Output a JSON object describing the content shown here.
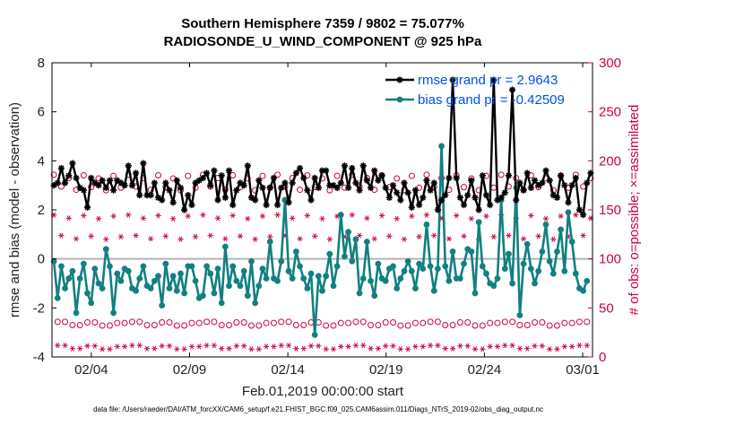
{
  "title_line1": "Southern Hemisphere 7359 / 9802 = 75.077%",
  "title_line2": "RADIOSONDE_U_WIND_COMPONENT @ 925 hPa",
  "xlabel": "Feb.01,2019 00:00:00 start",
  "footer": "data file: /Users/raeder/DAI/ATM_forcXX/CAM6_setup/f.e21.FHIST_BGC.f09_025.CAM6assim.011/Diags_NTrS_2019-02/obs_diag_output.nc",
  "colors": {
    "rmse": "#000000",
    "bias": "#128080",
    "obs": "#cc0044",
    "zero": "#b4b4b4",
    "legend_text": "#0050e6"
  },
  "chart_data": {
    "type": "line",
    "x_unit": "days since Feb.01,2019 00:00:00",
    "xlim": [
      1,
      28.5
    ],
    "x_ticks": [
      3,
      8,
      13,
      18,
      23,
      28
    ],
    "x_tick_labels": [
      "02/04",
      "02/09",
      "02/14",
      "02/19",
      "02/24",
      "03/01"
    ],
    "ylabel_left": "rmse and bias (model - observation)",
    "ylim_left": [
      -4,
      8
    ],
    "y_ticks_left": [
      "-4",
      "-2",
      "0",
      "2",
      "4",
      "6",
      "8"
    ],
    "ylabel_right": "# of obs: o=possible; ×=assimilated",
    "ylim_right": [
      0,
      300
    ],
    "y_ticks_right": [
      "0",
      "50",
      "100",
      "150",
      "200",
      "250",
      "300"
    ],
    "legend": [
      {
        "name": "rmse",
        "label": "rmse grand pr = 2.9643"
      },
      {
        "name": "bias",
        "label": "bias grand pr = -0.42509"
      }
    ],
    "legend_position": "top-right",
    "series": [
      {
        "name": "rmse",
        "axis": "left",
        "marker": "asterisk",
        "values": [
          3.0,
          3.1,
          3.7,
          3.1,
          3.4,
          3.9,
          3.3,
          2.9,
          2.8,
          2.1,
          3.3,
          3.1,
          3.0,
          3.2,
          2.9,
          3.2,
          2.8,
          3.2,
          3.1,
          3.0,
          3.8,
          3.0,
          3.5,
          2.6,
          3.9,
          2.6,
          2.6,
          3.1,
          2.5,
          2.4,
          3.1,
          2.8,
          2.3,
          3.2,
          2.9,
          2.0,
          2.6,
          2.2,
          3.1,
          3.2,
          3.3,
          3.5,
          3.0,
          3.6,
          2.4,
          3.4,
          2.5,
          3.6,
          2.2,
          2.8,
          3.1,
          3.0,
          3.8,
          2.5,
          2.4,
          3.2,
          2.9,
          2.2,
          2.9,
          3.3,
          2.2,
          2.9,
          3.1,
          2.3,
          3.1,
          3.5,
          3.7,
          3.3,
          2.8,
          2.4,
          3.3,
          2.9,
          3.6,
          3.6,
          3.0,
          3.0,
          2.9,
          3.1,
          3.8,
          2.9,
          3.7,
          3.1,
          2.8,
          3.8,
          3.2,
          2.9,
          3.6,
          3.2,
          3.4,
          2.9,
          2.5,
          3.0,
          2.7,
          2.4,
          3.1,
          2.7,
          2.1,
          2.8,
          2.2,
          2.5,
          3.2,
          2.8,
          3.1,
          2.0,
          2.4,
          2.6,
          3.3,
          7.3,
          3.3,
          2.5,
          2.2,
          2.6,
          3.2,
          2.5,
          2.0,
          3.4,
          2.6,
          2.2,
          7.3,
          2.4,
          2.5,
          2.7,
          3.4,
          6.9,
          2.4,
          3.1,
          2.8,
          3.5,
          2.9,
          3.2,
          3.0,
          3.1,
          3.6,
          3.2,
          2.6,
          2.5,
          3.4,
          3.0,
          2.3,
          3.0,
          3.3,
          2.0,
          1.8,
          3.1,
          3.5
        ]
      },
      {
        "name": "bias",
        "axis": "left",
        "marker": "dot",
        "values": [
          -0.1,
          -1.6,
          -0.3,
          -1.2,
          -0.8,
          -0.5,
          -2.2,
          -0.8,
          -0.2,
          -1.4,
          -1.8,
          -0.4,
          -1.0,
          -1.2,
          0.4,
          -0.3,
          -2.2,
          -0.6,
          -0.9,
          -0.4,
          -0.5,
          -1.2,
          -1.3,
          -0.8,
          -0.3,
          -1.1,
          -1.2,
          -0.9,
          -0.7,
          -1.9,
          -0.2,
          -1.2,
          -0.7,
          -1.3,
          -0.6,
          -1.4,
          -0.3,
          -0.3,
          -0.9,
          -1.6,
          -1.5,
          -0.3,
          -0.6,
          -1.4,
          -0.4,
          -1.8,
          0.5,
          -1.1,
          -0.3,
          -0.9,
          -1.1,
          -0.5,
          -1.5,
          -0.1,
          -1.8,
          -1.1,
          -0.4,
          -0.8,
          0.7,
          -0.8,
          -0.9,
          -0.1,
          2.4,
          -0.5,
          -0.8,
          0.3,
          -0.3,
          -0.8,
          -1.2,
          -0.6,
          -3.1,
          -0.7,
          -1.3,
          -0.7,
          0.2,
          -1.1,
          -0.3,
          1.8,
          0.1,
          1.1,
          -0.1,
          0.8,
          -1.4,
          -0.8,
          0.7,
          -0.9,
          -1.5,
          -0.2,
          -0.8,
          -0.9,
          -0.4,
          -0.3,
          -1.2,
          -0.8,
          -0.5,
          -0.1,
          -0.5,
          -1.2,
          -0.2,
          -0.4,
          1.4,
          -0.3,
          -1.3,
          -0.4,
          4.6,
          -0.3,
          -0.9,
          0.3,
          -0.8,
          -0.8,
          -0.2,
          0.4,
          0.3,
          -1.4,
          1.5,
          -0.3,
          -0.6,
          -1.0,
          -1.1,
          -0.8,
          2.4,
          -0.4,
          0.2,
          -1.0,
          2.9,
          -2.3,
          -0.2,
          0.6,
          -0.4,
          -1.0,
          -0.5,
          0.3,
          1.4,
          -0.1,
          -0.6,
          0.3,
          1.2,
          -0.5,
          1.9,
          0.7,
          -0.6,
          -1.2,
          -1.3,
          -0.9
        ]
      },
      {
        "name": "possible",
        "axis": "right",
        "marker": "circle",
        "period_values": [
          184,
          34,
          172,
          184,
          13
        ]
      },
      {
        "name": "assimilated",
        "axis": "right",
        "marker": "asterisk",
        "period_values": [
          143,
          10,
          122,
          143,
          7
        ]
      }
    ]
  }
}
